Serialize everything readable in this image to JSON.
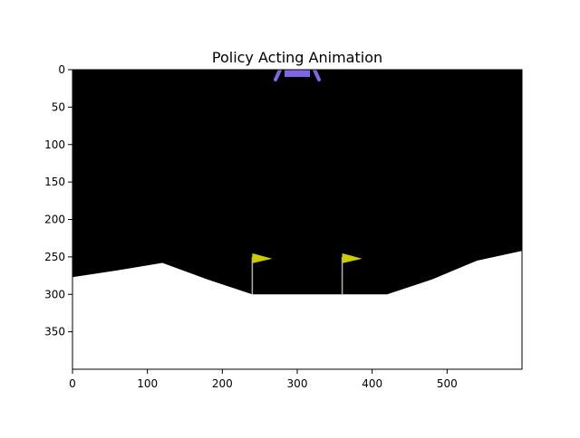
{
  "figure": {
    "title": "Policy Acting Animation"
  },
  "image_axes": {
    "x_range": [
      0,
      600
    ],
    "y_range": [
      400,
      0
    ],
    "x_ticks": [
      0,
      100,
      200,
      300,
      400,
      500
    ],
    "x_tick_labels": [
      "0",
      "100",
      "200",
      "300",
      "400",
      "500"
    ],
    "y_ticks": [
      0,
      50,
      100,
      150,
      200,
      250,
      300,
      350
    ],
    "y_tick_labels": [
      "0",
      "50",
      "100",
      "150",
      "200",
      "250",
      "300",
      "350"
    ]
  },
  "scene": {
    "sky_color": "#000000",
    "ground_color": "#ffffff",
    "flag_color": "#cccc00",
    "lander_color": "#8066e6",
    "terrain": [
      [
        0,
        277
      ],
      [
        60,
        268
      ],
      [
        120,
        258
      ],
      [
        180,
        280
      ],
      [
        240,
        300
      ],
      [
        300,
        300
      ],
      [
        360,
        300
      ],
      [
        420,
        300
      ],
      [
        480,
        280
      ],
      [
        540,
        255
      ],
      [
        600,
        242
      ]
    ],
    "flags": [
      {
        "x": 240,
        "pole_top": 250
      },
      {
        "x": 360,
        "pole_top": 250
      }
    ],
    "lander": {
      "x": 300,
      "y": 0
    }
  }
}
